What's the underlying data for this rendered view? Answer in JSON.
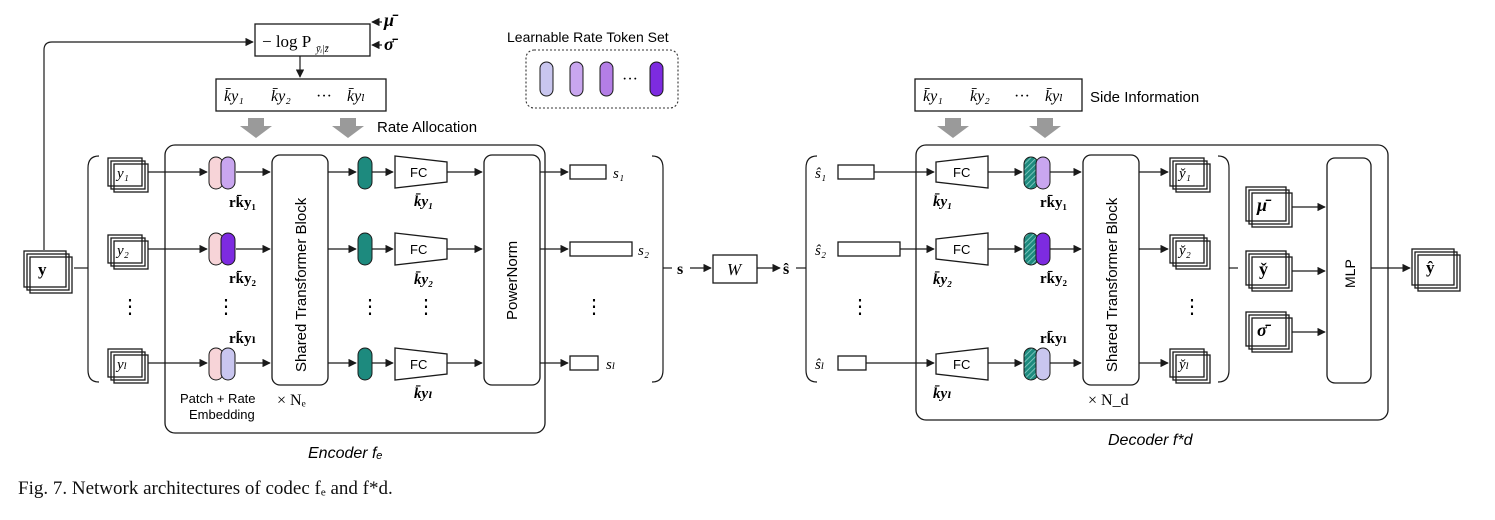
{
  "title_token_set": "Learnable Rate Token Set",
  "rate_allocation_label": "Rate Allocation",
  "side_information_label": "Side Information",
  "loss_label": "− log P",
  "loss_subscript": "ȳᵢ|z̄",
  "mu_input": "μ̄",
  "sigma_input": "σ̄",
  "k_bar_sequence": [
    "k̄y₁",
    "k̄y₂",
    "···",
    "k̄yₗ"
  ],
  "encoder": {
    "input_y": "y",
    "patches": [
      "y₁",
      "y₂",
      "yₗ"
    ],
    "rate_tokens": [
      "rk̄y₁",
      "rk̄y₂",
      "rk̄yₗ"
    ],
    "patch_embedding_label": "Patch + Rate\nEmbedding",
    "shared_block_label": "Shared Transformer Block",
    "ne_label": "× Nₑ",
    "fc_label": "FC",
    "k_labels": [
      "k̄y₁",
      "k̄y₂",
      "k̄yₗ"
    ],
    "powernorm_label": "PowerNorm",
    "outputs": [
      "s₁",
      "s₂",
      "sₗ"
    ],
    "name": "Encoder fₑ"
  },
  "channel": {
    "s_label": "s",
    "w_label": "W",
    "s_hat_label": "ŝ"
  },
  "decoder": {
    "inputs": [
      "ŝ₁",
      "ŝ₂",
      "ŝₗ"
    ],
    "fc_label": "FC",
    "k_labels": [
      "k̄y₁",
      "k̄y₂",
      "k̄yₗ"
    ],
    "rate_tokens": [
      "rk̄y₁",
      "rk̄y₂",
      "rk̄yₗ"
    ],
    "shared_block_label": "Shared Transformer Block",
    "nd_label": "× N_d",
    "outputs": [
      "y̌₁",
      "y̌₂",
      "y̌ₗ"
    ],
    "mlp_inputs": [
      "μ̄",
      "y̌",
      "σ̄"
    ],
    "mlp_label": "MLP",
    "final_output": "ŷ",
    "name": "Decoder f*d"
  },
  "dots": "⋮",
  "caption": "Fig. 7.  Network architectures of codec fₑ and f*d.",
  "colors": {
    "patch_pink": "#f7d4d8",
    "token_light": "#c9c6ef",
    "token_mid": "#b488e3",
    "token_dark": "#7d2be0",
    "teal": "#1d8a7e",
    "fc_blue": "#d7ecfb",
    "powernorm": "#fbe5d2",
    "shared_block": "#ececec",
    "mlp_blue": "#cde9fb",
    "bar_blue": "#2d8cf0",
    "gray_arrow": "#9a9a9a"
  }
}
